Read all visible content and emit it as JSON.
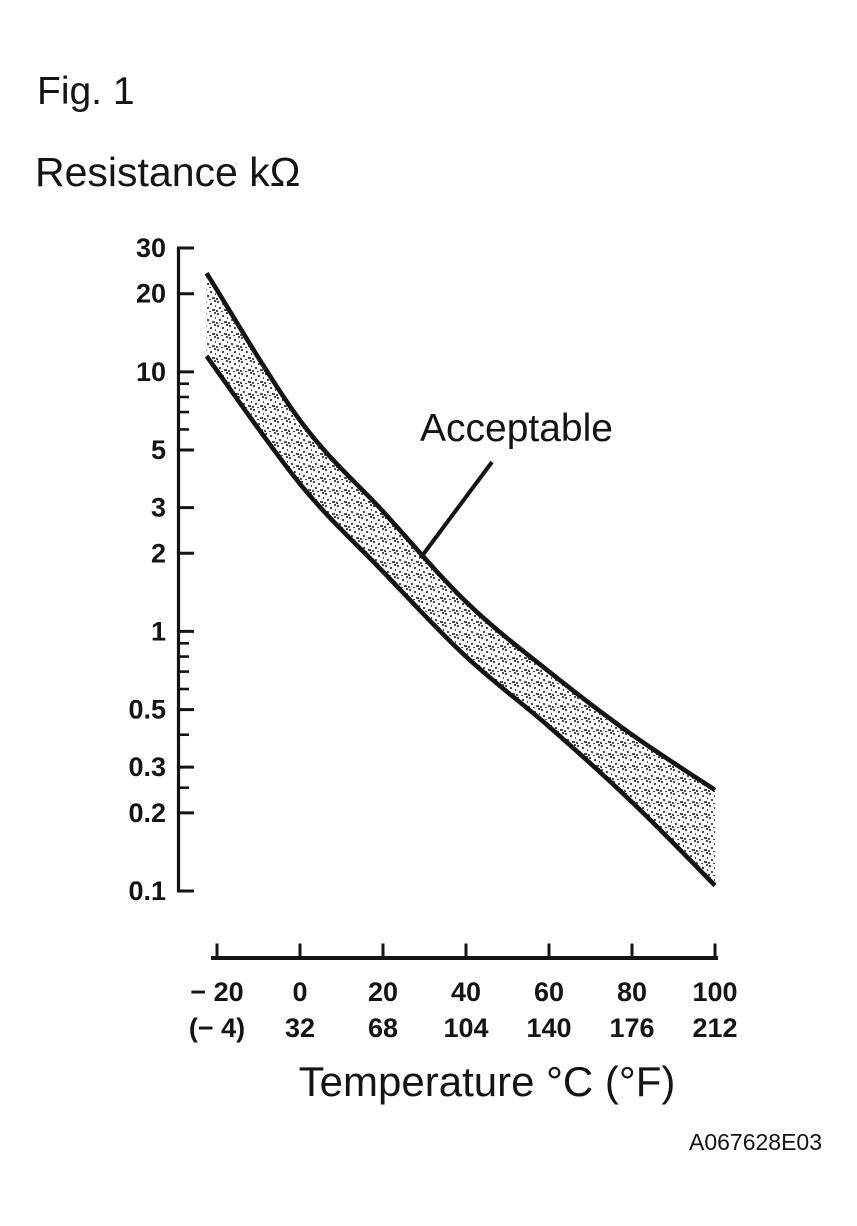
{
  "figure": {
    "label": "Fig. 1",
    "code": "A067628E03"
  },
  "colors": {
    "ink": "#141414",
    "paper": "#ffffff",
    "stipple_dot": "#4d4d4d"
  },
  "chart_data": {
    "type": "line",
    "title": "",
    "ylabel": "Resistance kΩ",
    "xlabel": "Temperature °C (°F)",
    "y_scale": "log",
    "ylim": [
      0.1,
      30
    ],
    "xlim": [
      -20,
      100
    ],
    "grid": false,
    "y_ticks_major": [
      30,
      20,
      10,
      5,
      3,
      2,
      1,
      0.5,
      0.3,
      0.2,
      0.1
    ],
    "y_tick_labels": [
      "30",
      "20",
      "10",
      "5",
      "3",
      "2",
      "1",
      "0.5",
      "0.3",
      "0.2",
      "0.1"
    ],
    "y_ticks_minor": [
      9,
      8,
      7,
      6,
      0.9,
      0.8,
      0.7,
      0.6,
      0.4,
      0.25
    ],
    "x_tick_values": [
      -20,
      0,
      20,
      40,
      60,
      80,
      100
    ],
    "x_tick_labels_celsius": [
      "− 20",
      "0",
      "20",
      "40",
      "60",
      "80",
      "100"
    ],
    "x_tick_labels_fahrenheit": [
      "(− 4)",
      "32",
      "68",
      "104",
      "140",
      "176",
      "212"
    ],
    "annotation": {
      "label": "Acceptable"
    },
    "band_fill": "stipple",
    "series": [
      {
        "name": "upper-limit",
        "points": [
          [
            -22.5,
            24
          ],
          [
            0,
            6.5
          ],
          [
            20,
            2.9
          ],
          [
            40,
            1.3
          ],
          [
            60,
            0.7
          ],
          [
            80,
            0.4
          ],
          [
            100,
            0.245
          ]
        ]
      },
      {
        "name": "lower-limit",
        "points": [
          [
            -22.5,
            11.5
          ],
          [
            0,
            3.7
          ],
          [
            20,
            1.7
          ],
          [
            40,
            0.8
          ],
          [
            60,
            0.43
          ],
          [
            80,
            0.22
          ],
          [
            100,
            0.105
          ]
        ]
      }
    ]
  }
}
